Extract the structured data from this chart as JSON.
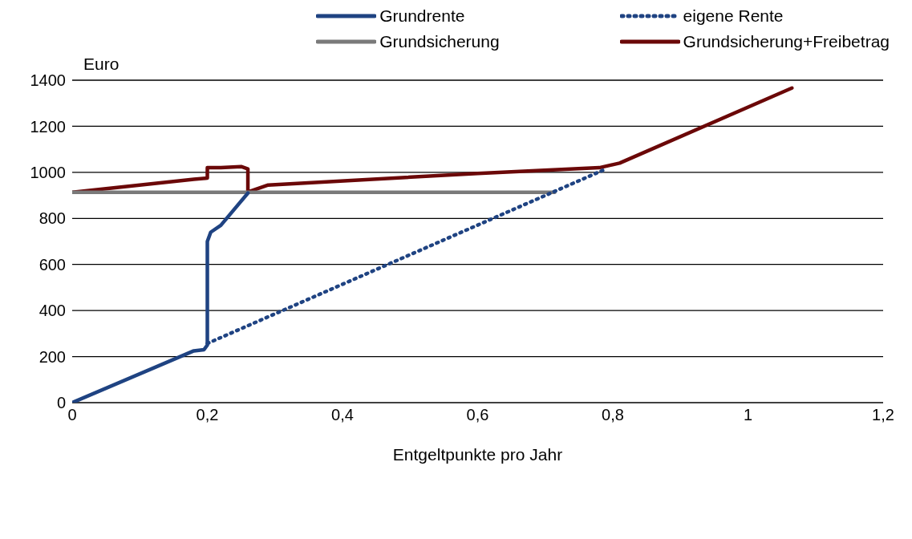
{
  "chart_data": {
    "type": "line",
    "xlabel": "Entgeltpunkte pro Jahr",
    "ylabel": "Euro",
    "xlim": [
      0,
      1.2
    ],
    "xticks": [
      0,
      {
        "value": 0.2,
        "label": "0,2"
      },
      {
        "value": 0.4,
        "label": "0,4"
      },
      {
        "value": 0.6,
        "label": "0,6"
      },
      {
        "value": 0.8,
        "label": "0,8"
      },
      1,
      {
        "value": 1.2,
        "label": "1,2"
      }
    ],
    "ylim": [
      0,
      1400
    ],
    "yticks": [
      0,
      200,
      400,
      600,
      800,
      1000,
      1200,
      1400
    ],
    "grid": "y",
    "legend": "top",
    "marker": "none",
    "series": [
      {
        "name": "Grundrente",
        "color": "#1f4382",
        "line_style": "solid",
        "x": [
          0,
          0.18,
          0.195,
          0.2,
          0.2,
          0.205,
          0.22,
          0.26
        ],
        "values": [
          0,
          225,
          230,
          250,
          700,
          740,
          770,
          910
        ]
      },
      {
        "name": "eigene Rente",
        "color": "#1f4382",
        "line_style": "dotted",
        "x": [
          0.2,
          0.79
        ],
        "values": [
          257,
          1015
        ]
      },
      {
        "name": "Grundsicherung",
        "color": "#7a7a7a",
        "line_style": "solid",
        "x": [
          0,
          0.714
        ],
        "values": [
          913,
          913
        ]
      },
      {
        "name": "Grundsicherung+Freibetrag",
        "color": "#6b0808",
        "line_style": "solid",
        "x": [
          0,
          0.18,
          0.2,
          0.2,
          0.22,
          0.25,
          0.26,
          0.26,
          0.29,
          0.6,
          0.78,
          0.81,
          1.065
        ],
        "values": [
          913,
          970,
          975,
          1020,
          1020,
          1025,
          1015,
          915,
          945,
          995,
          1020,
          1040,
          1366
        ]
      }
    ]
  }
}
